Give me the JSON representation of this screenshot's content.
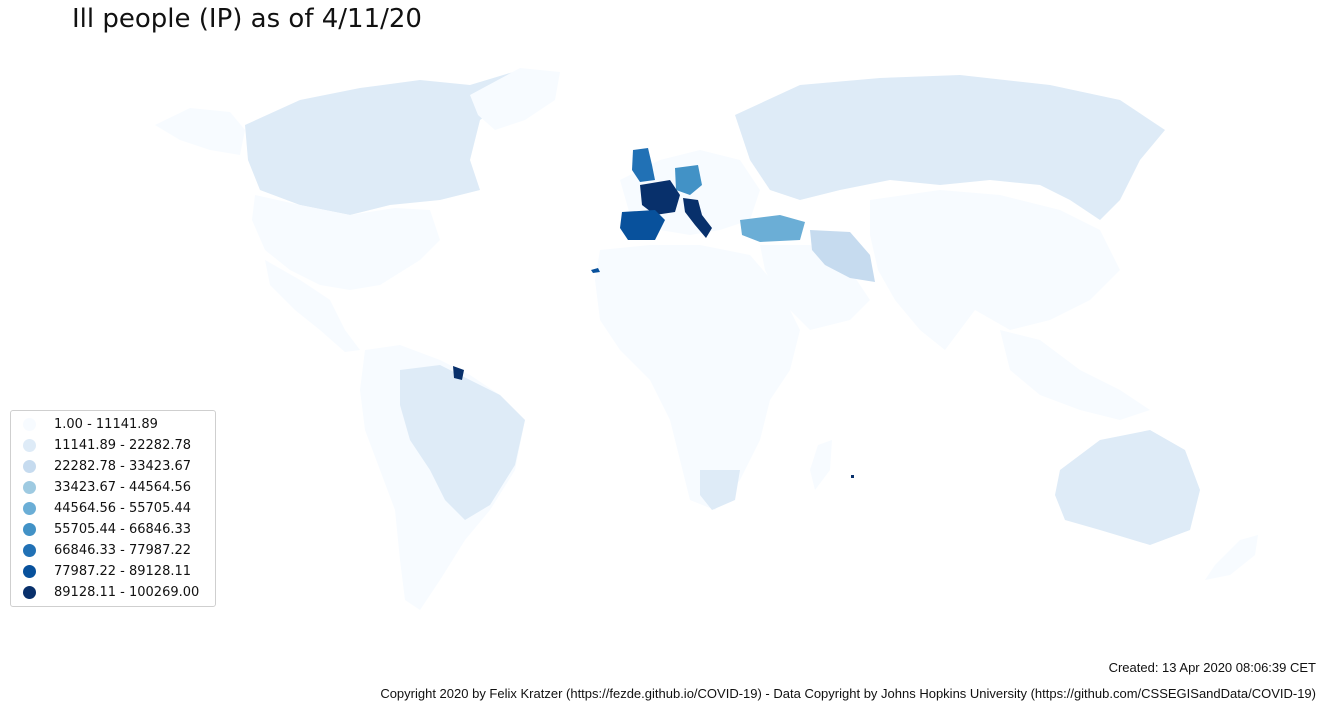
{
  "title": "Ill people (IP) as of 4/11/20",
  "legend": {
    "items": [
      {
        "label": "1.00 - 11141.89",
        "color": "#f7fbff"
      },
      {
        "label": "11141.89 - 22282.78",
        "color": "#deebf7"
      },
      {
        "label": "22282.78 - 33423.67",
        "color": "#c6dbef"
      },
      {
        "label": "33423.67 - 44564.56",
        "color": "#9ecae1"
      },
      {
        "label": "44564.56 - 55705.44",
        "color": "#6baed6"
      },
      {
        "label": "55705.44 - 66846.33",
        "color": "#4292c6"
      },
      {
        "label": "66846.33 - 77987.22",
        "color": "#2171b5"
      },
      {
        "label": "77987.22 - 89128.11",
        "color": "#08519c"
      },
      {
        "label": "89128.11 - 100269.00",
        "color": "#08306b"
      }
    ]
  },
  "footer": {
    "created": "Created: 13 Apr 2020 08:06:39 CET",
    "copyright": "Copyright 2020 by Felix Kratzer (https://fezde.github.io/COVID-19) - Data Copyright by Johns Hopkins University (https://github.com/CSSEGISandData/COVID-19)"
  }
}
